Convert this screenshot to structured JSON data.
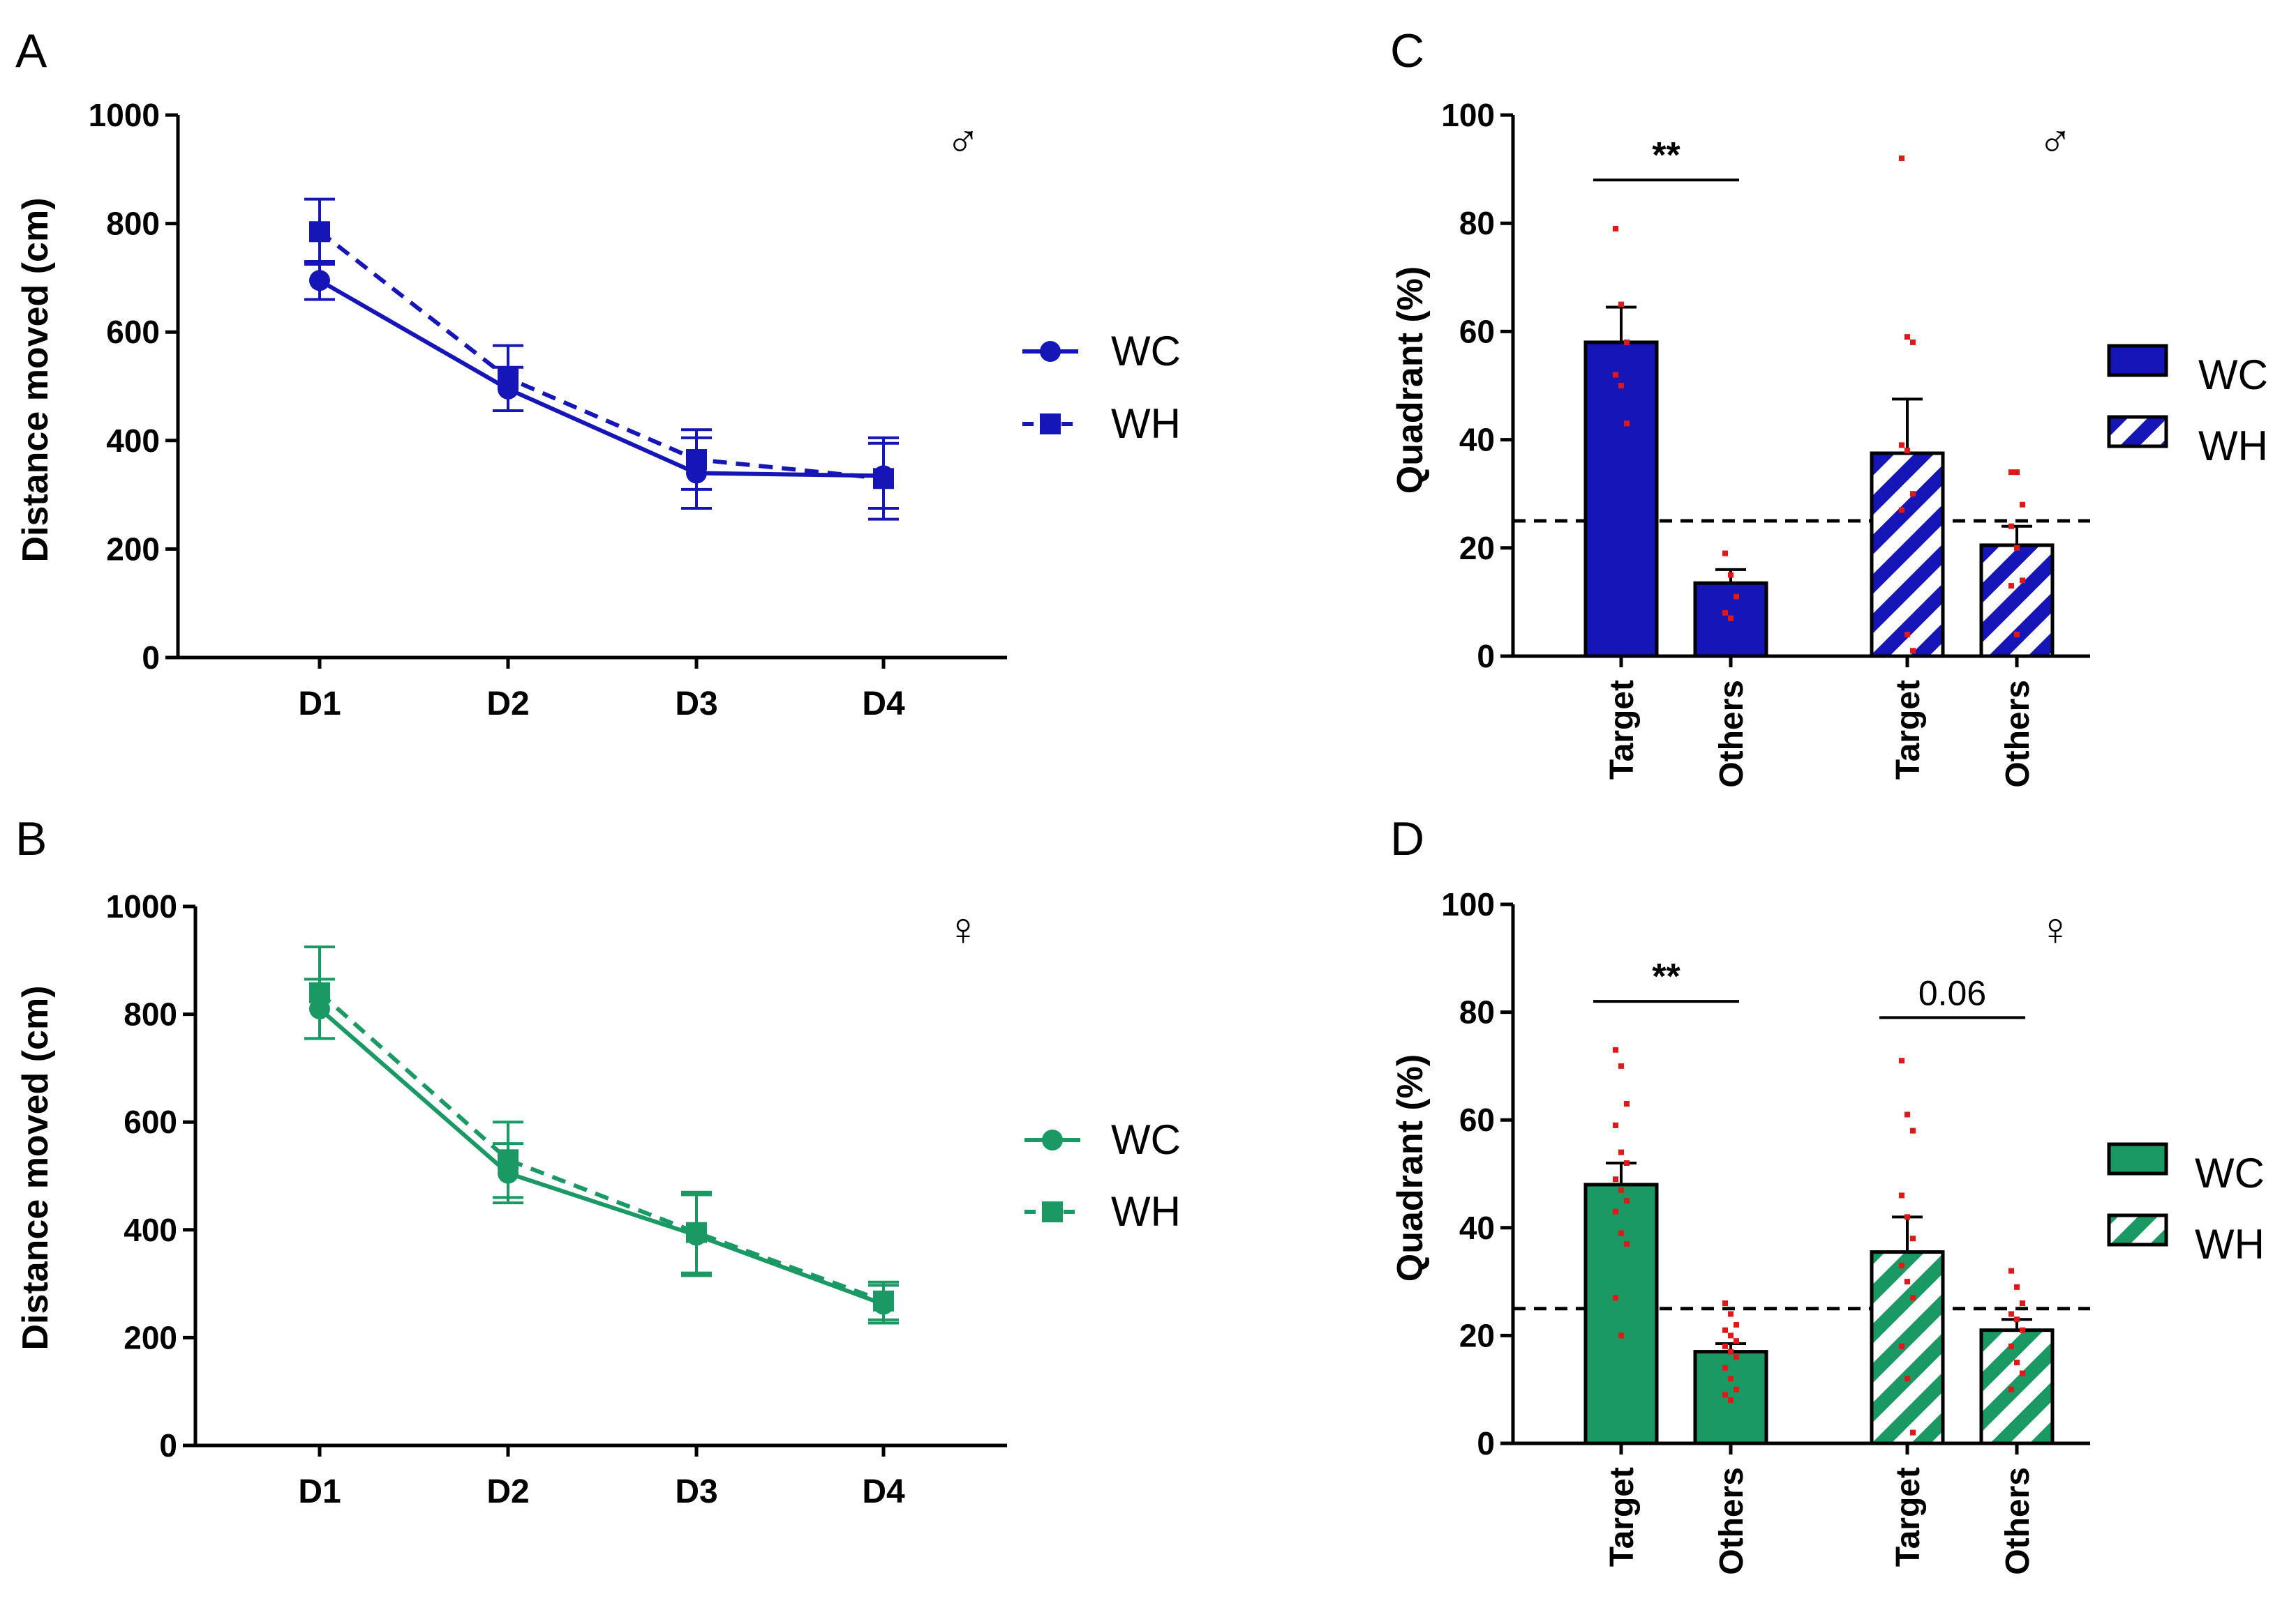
{
  "colors": {
    "blue": "#1616b8",
    "green": "#1a9965",
    "dot": "#e01818",
    "black": "#000000"
  },
  "chart_data": [
    {
      "id": "A",
      "type": "line",
      "letter": "A",
      "sex_symbol": "♂",
      "color": "#1616b8",
      "categories": [
        "D1",
        "D2",
        "D3",
        "D4"
      ],
      "ylabel": "Distance moved (cm)",
      "ylim": [
        0,
        1000
      ],
      "yticks": [
        "0",
        "200",
        "400",
        "600",
        "800",
        "1000"
      ],
      "series": [
        {
          "name": "WC",
          "marker": "circle",
          "dash": false,
          "values": [
            695,
            495,
            340,
            335
          ],
          "err": [
            35,
            40,
            65,
            60
          ]
        },
        {
          "name": "WH",
          "marker": "square",
          "dash": true,
          "values": [
            785,
            515,
            365,
            330
          ],
          "err": [
            60,
            60,
            55,
            75
          ]
        }
      ],
      "legend": [
        "WC",
        "WH"
      ]
    },
    {
      "id": "B",
      "type": "line",
      "letter": "B",
      "sex_symbol": "♀",
      "color": "#1a9965",
      "categories": [
        "D1",
        "D2",
        "D3",
        "D4"
      ],
      "ylabel": "Distance moved (cm)",
      "ylim": [
        0,
        1000
      ],
      "yticks": [
        "0",
        "200",
        "400",
        "600",
        "800",
        "1000"
      ],
      "series": [
        {
          "name": "WC",
          "marker": "circle",
          "dash": false,
          "values": [
            810,
            505,
            390,
            262
          ],
          "err": [
            55,
            55,
            75,
            35
          ]
        },
        {
          "name": "WH",
          "marker": "square",
          "dash": true,
          "values": [
            840,
            530,
            395,
            268
          ],
          "err": [
            85,
            70,
            75,
            35
          ]
        }
      ],
      "legend": [
        "WC",
        "WH"
      ]
    },
    {
      "id": "C",
      "type": "bar",
      "letter": "C",
      "sex_symbol": "♂",
      "color": "#1616b8",
      "categories": [
        "Target",
        "Others",
        "Target",
        "Others"
      ],
      "groups": [
        "WC",
        "WC",
        "WH",
        "WH"
      ],
      "ylabel": "Quadrant (%)",
      "ylim": [
        0,
        100
      ],
      "yticks": [
        "0",
        "20",
        "40",
        "60",
        "80",
        "100"
      ],
      "values": [
        58,
        13.5,
        37.5,
        20.5
      ],
      "err": [
        6.5,
        2.5,
        10,
        3.5
      ],
      "points": [
        [
          79,
          65,
          58,
          52,
          50,
          43
        ],
        [
          19,
          15,
          11,
          8,
          7
        ],
        [
          92,
          59,
          58,
          39,
          38,
          30,
          27,
          4,
          1
        ],
        [
          34,
          34,
          28,
          24,
          20,
          14,
          13,
          4
        ]
      ],
      "reference_line": 25,
      "annotations": [
        {
          "text": "**",
          "from": 0,
          "to": 1,
          "y": 88
        }
      ],
      "legend": [
        "WC",
        "WH"
      ]
    },
    {
      "id": "D",
      "type": "bar",
      "letter": "D",
      "sex_symbol": "♀",
      "color": "#1a9965",
      "categories": [
        "Target",
        "Others",
        "Target",
        "Others"
      ],
      "groups": [
        "WC",
        "WC",
        "WH",
        "WH"
      ],
      "ylabel": "Quadrant (%)",
      "ylim": [
        0,
        100
      ],
      "yticks": [
        "0",
        "20",
        "40",
        "60",
        "80",
        "100"
      ],
      "values": [
        48,
        17,
        35.5,
        21
      ],
      "err": [
        4,
        1.5,
        6.5,
        2
      ],
      "points": [
        [
          73,
          70,
          63,
          59,
          54,
          52,
          49,
          47,
          45,
          43,
          39,
          37,
          27,
          20
        ],
        [
          26,
          24,
          22,
          21,
          20,
          19,
          18,
          17,
          16,
          14,
          12,
          10,
          9,
          8
        ],
        [
          71,
          61,
          58,
          46,
          42,
          38,
          33,
          30,
          27,
          18,
          12,
          2
        ],
        [
          32,
          29,
          26,
          24,
          23,
          21,
          18,
          15,
          13,
          10
        ]
      ],
      "reference_line": 25,
      "annotations": [
        {
          "text": "**",
          "from": 0,
          "to": 1,
          "y": 82
        },
        {
          "text": "0.06",
          "from": 2,
          "to": 3,
          "y": 79
        }
      ],
      "legend": [
        "WC",
        "WH"
      ]
    }
  ]
}
